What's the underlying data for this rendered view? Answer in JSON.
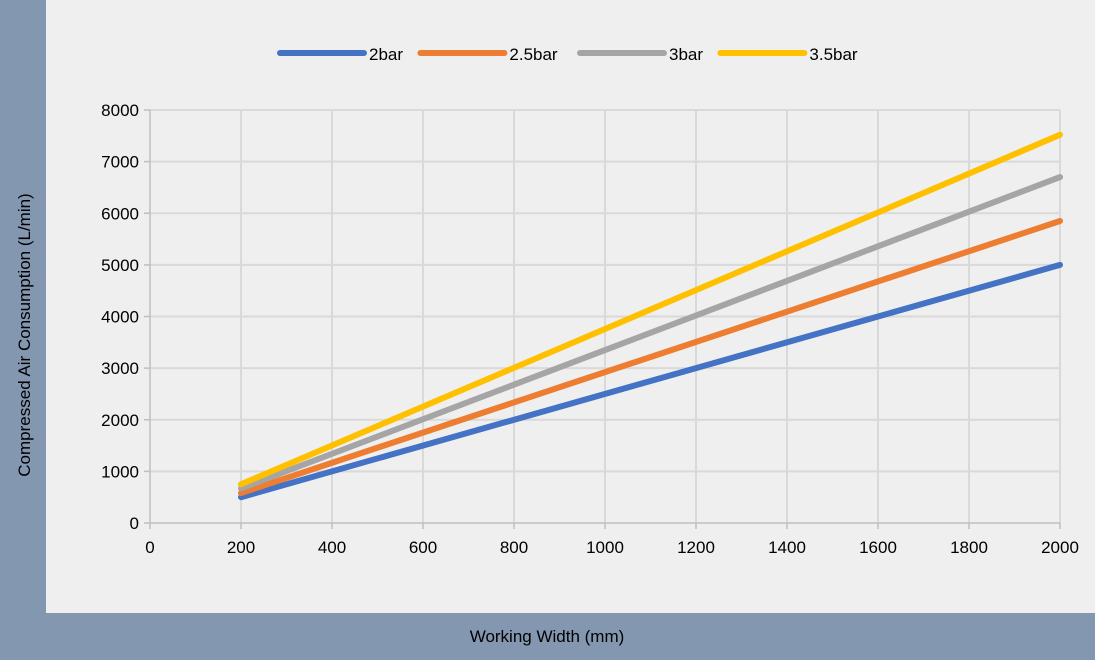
{
  "chart_data": {
    "type": "line",
    "xlabel": "Working Width (mm)",
    "ylabel": "Compressed Air Consumption (L/min)",
    "xlim": [
      0,
      2000
    ],
    "ylim": [
      0,
      8000
    ],
    "x_ticks": [
      "0",
      "200",
      "400",
      "600",
      "800",
      "1000",
      "1200",
      "1400",
      "1600",
      "1800",
      "2000"
    ],
    "y_ticks": [
      "0",
      "1000",
      "2000",
      "3000",
      "4000",
      "5000",
      "6000",
      "7000",
      "8000"
    ],
    "grid": true,
    "legend_position": "top",
    "series": [
      {
        "name": "2bar",
        "color": "#4472c4",
        "x": [
          200,
          2000
        ],
        "y": [
          500,
          5000
        ]
      },
      {
        "name": "2.5bar",
        "color": "#ed7d31",
        "x": [
          200,
          2000
        ],
        "y": [
          580,
          5850
        ]
      },
      {
        "name": "3bar",
        "color": "#a5a5a5",
        "x": [
          200,
          2000
        ],
        "y": [
          670,
          6700
        ]
      },
      {
        "name": "3.5bar",
        "color": "#ffc000",
        "x": [
          200,
          2000
        ],
        "y": [
          750,
          7520
        ]
      }
    ]
  }
}
